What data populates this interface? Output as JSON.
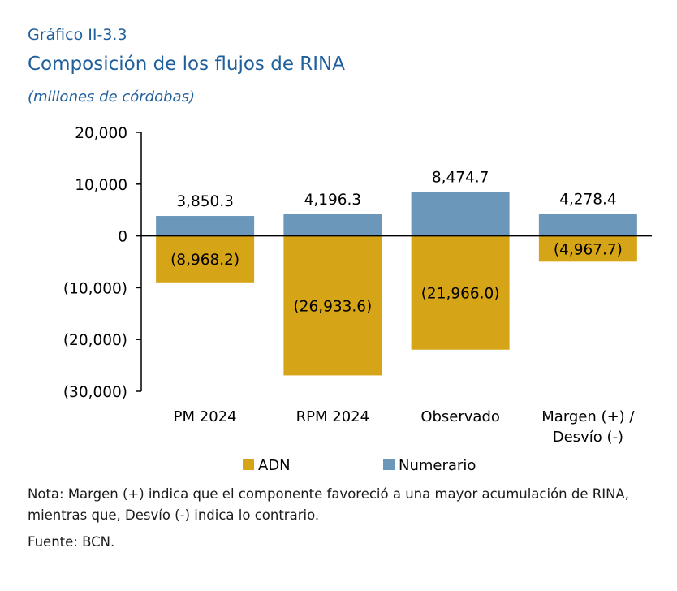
{
  "header": {
    "number": "Gráfico II-3.3",
    "title": "Composición de los flujos de RINA",
    "subtitle": "(millones de córdobas)"
  },
  "chart_data": {
    "type": "bar",
    "stacked": true,
    "categories": [
      "PM 2024",
      "RPM 2024",
      "Observado",
      "Margen (+) /\nDesvío (-)"
    ],
    "series": [
      {
        "name": "ADN",
        "color": "#d6a417",
        "values": [
          -8968.2,
          -26933.6,
          -21966.0,
          -4967.7
        ],
        "labels": [
          "(8,968.2)",
          "(26,933.6)",
          "(21,966.0)",
          "(4,967.7)"
        ]
      },
      {
        "name": "Numerario",
        "color": "#6b97bb",
        "values": [
          3850.3,
          4196.3,
          8474.7,
          4278.4
        ],
        "labels": [
          "3,850.3",
          "4,196.3",
          "8,474.7",
          "4,278.4"
        ]
      }
    ],
    "ylim": [
      -30000,
      20000
    ],
    "yticks": [
      20000,
      10000,
      0,
      -10000,
      -20000,
      -30000
    ],
    "ytick_labels": [
      "20,000",
      "10,000",
      "0",
      "(10,000)",
      "(20,000)",
      "(30,000)"
    ],
    "legend_position": "bottom",
    "grid": false
  },
  "footer": {
    "note": "Nota: Margen (+) indica que el componente favoreció a una mayor acumulación de RINA, mientras que, Desvío (-) indica lo contrario.",
    "source": "Fuente: BCN."
  }
}
